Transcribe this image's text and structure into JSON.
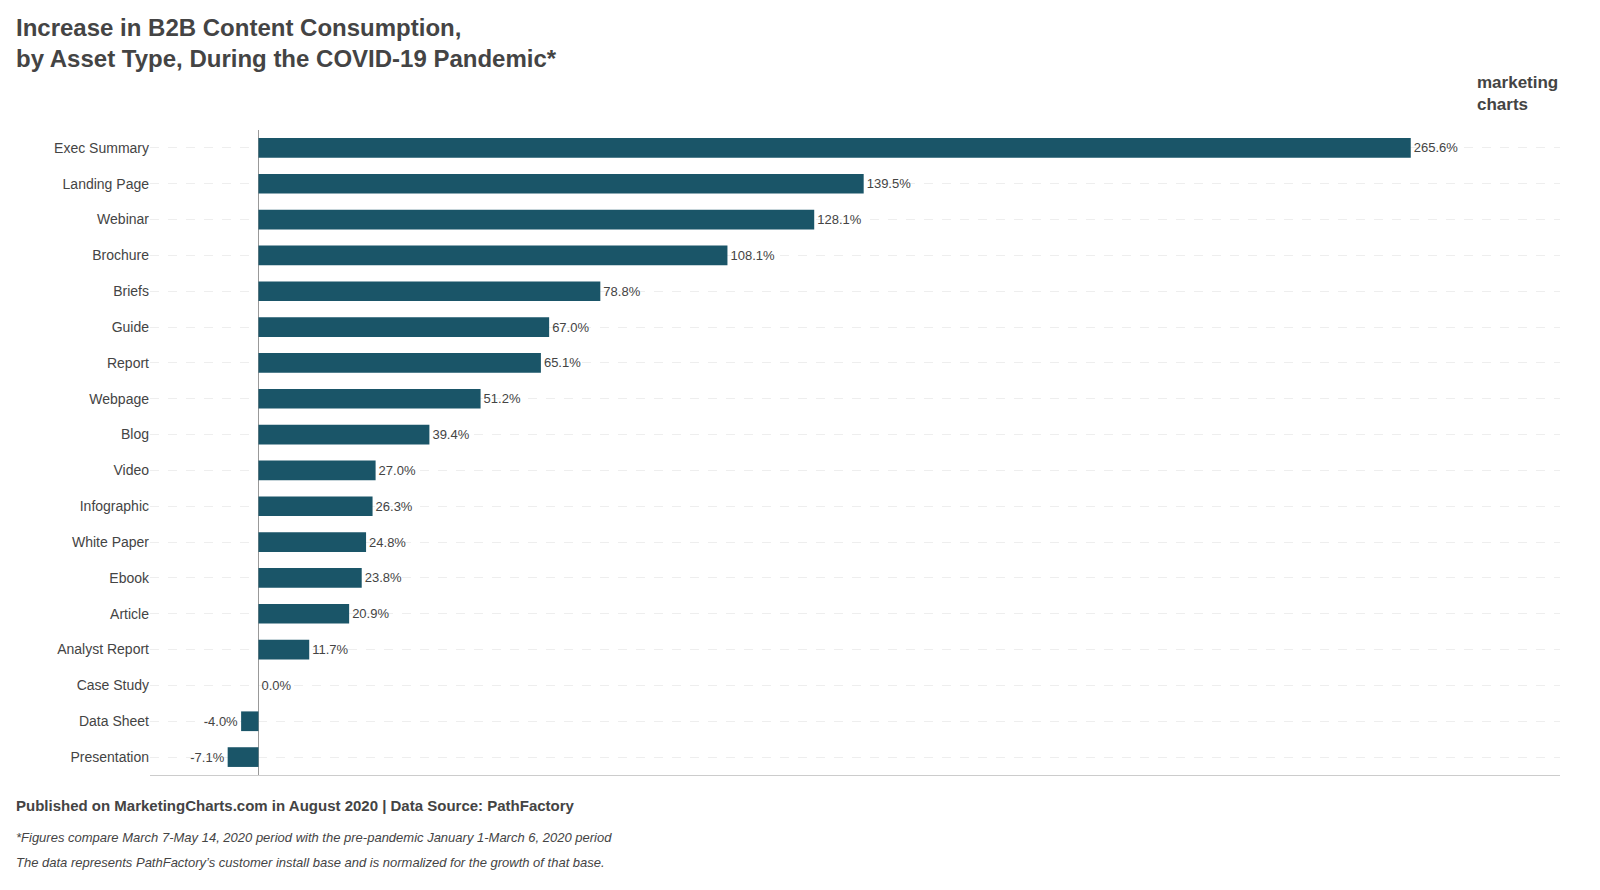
{
  "chart_data": {
    "type": "bar",
    "orientation": "horizontal",
    "title": "Increase in B2B Content Consumption,\nby Asset Type, During the COVID-19 Pandemic*",
    "categories": [
      "Exec Summary",
      "Landing Page",
      "Webinar",
      "Brochure",
      "Briefs",
      "Guide",
      "Report",
      "Webpage",
      "Blog",
      "Video",
      "Infographic",
      "White Paper",
      "Ebook",
      "Article",
      "Analyst Report",
      "Case Study",
      "Data Sheet",
      "Presentation"
    ],
    "values": [
      265.6,
      139.5,
      128.1,
      108.1,
      78.8,
      67.0,
      65.1,
      51.2,
      39.4,
      27.0,
      26.3,
      24.8,
      23.8,
      20.9,
      11.7,
      0.0,
      -4.0,
      -7.1
    ],
    "value_labels": [
      "265.6%",
      "139.5%",
      "128.1%",
      "108.1%",
      "78.8%",
      "67.0%",
      "65.1%",
      "51.2%",
      "39.4%",
      "27.0%",
      "26.3%",
      "24.8%",
      "23.8%",
      "20.9%",
      "11.7%",
      "0.0%",
      "-4.0%",
      "-7.1%"
    ],
    "data_labels": true,
    "color": "#1a5568",
    "xlim": [
      -25,
      300
    ],
    "tick_labels": "y",
    "grid": true,
    "annotations": [
      "marketing\ncharts",
      "Published on MarketingCharts.com in August 2020 | Data Source: PathFactory",
      "*Figures compare March 7-May 14, 2020 period with the pre-pandemic January 1-March 6, 2020 period",
      "The data represents PathFactory’s customer install base and is normalized for the growth of that base."
    ]
  }
}
